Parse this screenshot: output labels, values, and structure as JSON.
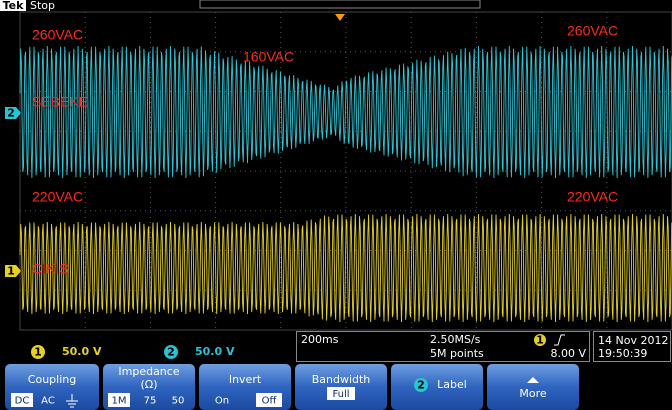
{
  "header": {
    "logo": "Tek",
    "status": "Stop"
  },
  "annotations": {
    "ch2_left": "260VAC",
    "ch2_middle": "160VAC",
    "ch2_right": "260VAC",
    "ch2_label": "SEBEKE",
    "ch1_left": "220VAC",
    "ch1_right": "220VAC",
    "ch1_label": "CIKIS"
  },
  "markers": {
    "ch2": "2",
    "ch1": "1"
  },
  "status_bar": {
    "ch1": {
      "badge": "1",
      "scale": "50.0 V"
    },
    "ch2": {
      "badge": "2",
      "scale": "50.0 V"
    },
    "timebase": "200ms",
    "sample_rate": "2.50MS/s",
    "record_length": "5M points",
    "trigger": {
      "badge": "1",
      "level": "8.00 V"
    },
    "date": "14 Nov 2012",
    "time": "19:50:39"
  },
  "menu": {
    "coupling": {
      "title": "Coupling",
      "options": [
        "DC",
        "AC"
      ]
    },
    "impedance": {
      "title": "Impedance",
      "unit": "(Ω)",
      "options": [
        "1M",
        "75",
        "50"
      ]
    },
    "invert": {
      "title": "Invert",
      "options": [
        "On",
        "Off"
      ]
    },
    "bandwidth": {
      "title": "Bandwidth",
      "value": "Full"
    },
    "label": {
      "badge": "2",
      "title": "Label"
    },
    "more": {
      "title": "More"
    }
  }
}
